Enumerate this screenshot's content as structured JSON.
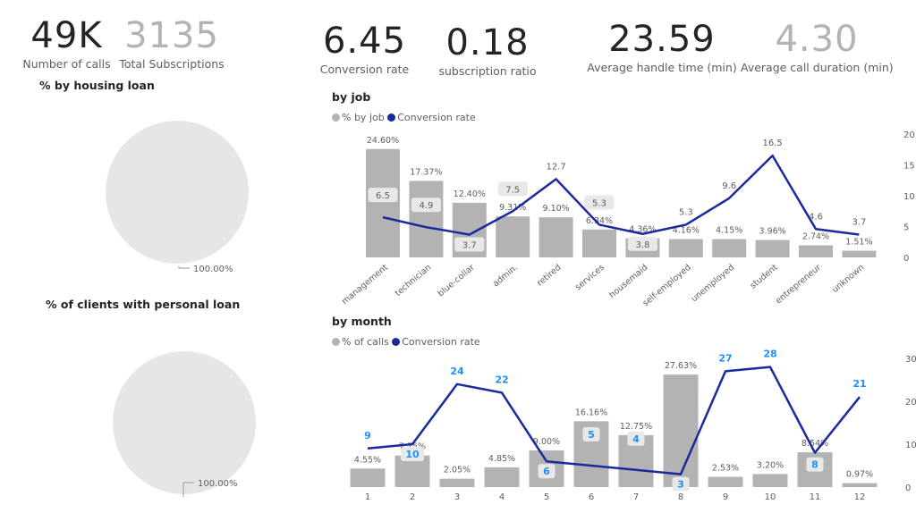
{
  "kpis": [
    {
      "value": "49K",
      "label": "Number of calls"
    },
    {
      "value": "3135",
      "label": "Total Subscriptions"
    },
    {
      "value": "6.45",
      "label": "Conversion rate"
    },
    {
      "value": "0.18",
      "label": "subscription ratio"
    },
    {
      "value": "23.59",
      "label": "Average handle time (min)"
    },
    {
      "value": "4.30",
      "label": "Average call duration (min)"
    }
  ],
  "pies": [
    {
      "title": "% by housing loan",
      "label": "100.00%",
      "color": "#e6e6e6"
    },
    {
      "title": "% of clients with personal loan",
      "label": "100.00%",
      "color": "#e6e6e6"
    }
  ],
  "colors": {
    "bar": "#b3b3b3",
    "line": "#1a2a9c",
    "month_label": "#1e90ff"
  },
  "chart_data": [
    {
      "type": "bar",
      "title": "by job",
      "legend": [
        "% by job",
        "Conversion rate"
      ],
      "legend_position": "top-left",
      "categories": [
        "management",
        "technician",
        "blue-collar",
        "admin.",
        "retired",
        "services",
        "housemaid",
        "self-employed",
        "unemployed",
        "student",
        "entrepreneur",
        "unknown"
      ],
      "bar_values": [
        24.6,
        17.37,
        12.4,
        9.31,
        9.1,
        6.34,
        4.36,
        4.16,
        4.15,
        3.96,
        2.74,
        1.51
      ],
      "bar_labels": [
        "24.60%",
        "17.37%",
        "12.40%",
        "9.31%",
        "9.10%",
        "6.34%",
        "4.36%",
        "4.16%",
        "4.15%",
        "3.96%",
        "2.74%",
        "1.51%"
      ],
      "line_values": [
        6.5,
        4.9,
        3.7,
        7.5,
        12.7,
        5.3,
        3.8,
        5.3,
        9.6,
        16.5,
        4.6,
        3.7
      ],
      "line_labels": [
        "6.5",
        "4.9",
        "3.7",
        "7.5",
        "12.7",
        "5.3",
        "3.8",
        "5.3",
        "9.6",
        "16.5",
        "4.6",
        "3.7"
      ],
      "y2_ticks": [
        "0",
        "5",
        "10",
        "15",
        "20"
      ],
      "y2lim": [
        0,
        20
      ],
      "bar_ylim": [
        0,
        28
      ]
    },
    {
      "type": "bar",
      "title": "by month",
      "legend": [
        "% of calls",
        "Conversion rate"
      ],
      "legend_position": "top-left",
      "categories": [
        "1",
        "2",
        "3",
        "4",
        "5",
        "6",
        "7",
        "8",
        "9",
        "10",
        "11",
        "12"
      ],
      "bar_values": [
        4.55,
        7.75,
        2.05,
        4.85,
        9.0,
        16.16,
        12.75,
        27.63,
        2.53,
        3.2,
        8.54,
        0.97
      ],
      "bar_labels": [
        "4.55%",
        "7.75%",
        "2.05%",
        "4.85%",
        "9.00%",
        "16.16%",
        "12.75%",
        "27.63%",
        "2.53%",
        "3.20%",
        "8.54%",
        "0.97%"
      ],
      "line_values": [
        9,
        10,
        24,
        22,
        6,
        5,
        4,
        3,
        27,
        28,
        8,
        21
      ],
      "line_labels": [
        "9",
        "10",
        "24",
        "22",
        "6",
        "5",
        "4",
        "3",
        "27",
        "28",
        "8",
        "21"
      ],
      "y2_ticks": [
        "0",
        "10",
        "20",
        "30"
      ],
      "y2lim": [
        0,
        30
      ],
      "bar_ylim": [
        0,
        31.6
      ]
    }
  ]
}
